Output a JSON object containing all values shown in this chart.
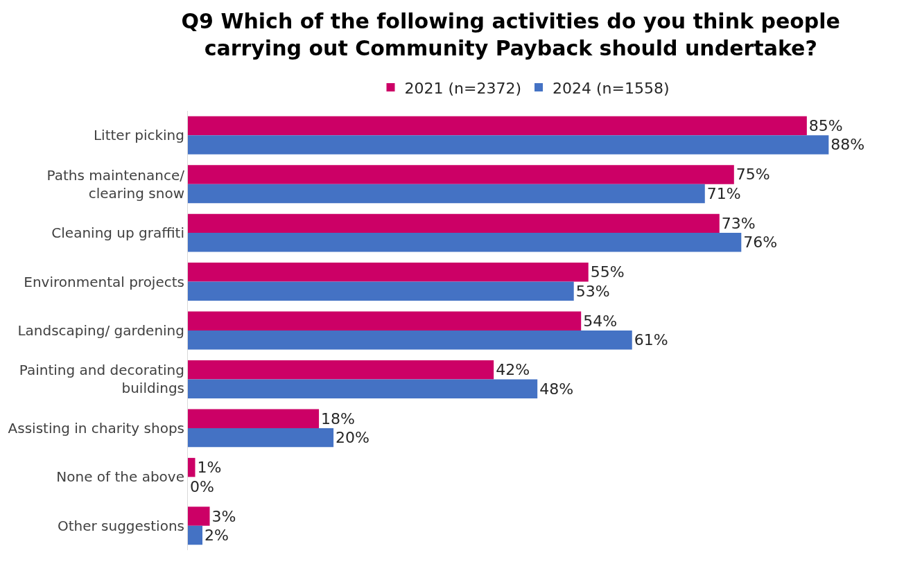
{
  "chart_data": {
    "type": "bar",
    "orientation": "horizontal",
    "title": "Q9 Which of the following activities do you think people\ncarrying out Community Payback should undertake?",
    "categories": [
      "Litter picking",
      "Paths maintenance/\nclearing snow",
      "Cleaning up graffiti",
      "Environmental projects",
      "Landscaping/ gardening",
      "Painting and decorating\nbuildings",
      "Assisting in charity shops",
      "None of the above",
      "Other suggestions"
    ],
    "series": [
      {
        "name": "2021 (n=2372)",
        "color": "#cc0066",
        "values": [
          85,
          75,
          73,
          55,
          54,
          42,
          18,
          1,
          3
        ],
        "value_labels": [
          "85%",
          "75%",
          "73%",
          "55%",
          "54%",
          "42%",
          "18%",
          "1%",
          "3%"
        ]
      },
      {
        "name": "2024 (n=1558)",
        "color": "#4472c4",
        "values": [
          88,
          71,
          76,
          53,
          61,
          48,
          20,
          0,
          2
        ],
        "value_labels": [
          "88%",
          "71%",
          "76%",
          "53%",
          "61%",
          "48%",
          "20%",
          "0%",
          "2%"
        ]
      }
    ],
    "tick_labels": "y",
    "legend": "top"
  }
}
